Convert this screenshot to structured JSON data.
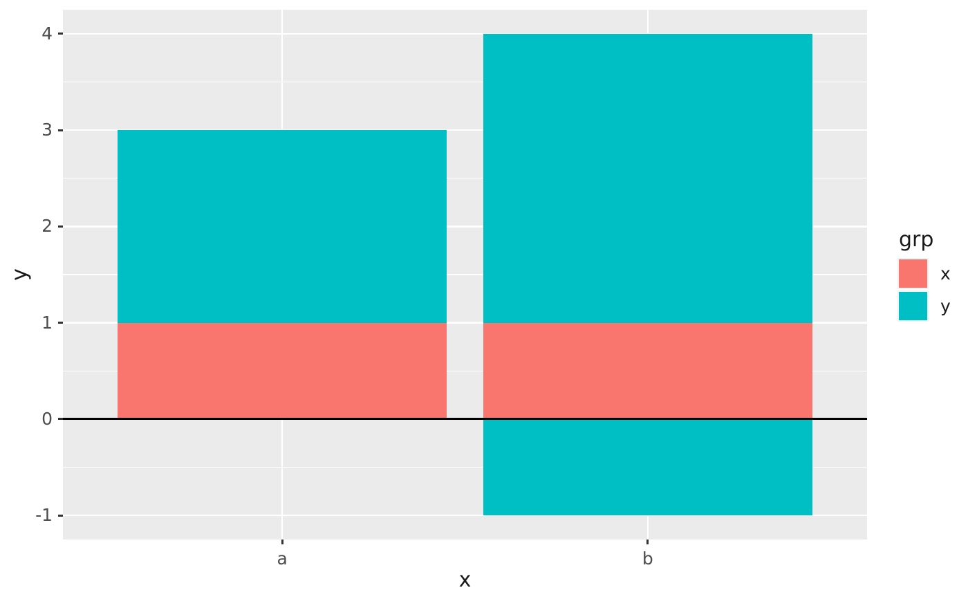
{
  "chart_data": {
    "type": "bar",
    "stacked": true,
    "orientation": "vertical",
    "title": "",
    "xlabel": "x",
    "ylabel": "y",
    "categories": [
      "a",
      "b"
    ],
    "segments": [
      {
        "category": "a",
        "group": "x",
        "from": 0,
        "to": 1
      },
      {
        "category": "a",
        "group": "y",
        "from": 1,
        "to": 3
      },
      {
        "category": "b",
        "group": "x",
        "from": 0,
        "to": 1
      },
      {
        "category": "b",
        "group": "y",
        "from": 1,
        "to": 4
      },
      {
        "category": "b",
        "group": "y",
        "from": -1,
        "to": 0
      }
    ],
    "series": [
      {
        "name": "x",
        "values": [
          1,
          1
        ]
      },
      {
        "name": "y",
        "values": [
          2,
          3
        ]
      },
      {
        "name": "y",
        "values": [
          0,
          -1
        ]
      }
    ],
    "y_breaks": {
      "values": [
        -1,
        0,
        1,
        2,
        3,
        4
      ],
      "labels": [
        "-1",
        "0",
        "1",
        "2",
        "3",
        "4"
      ]
    },
    "y_minor_breaks": [
      -0.5,
      0.5,
      1.5,
      2.5,
      3.5
    ],
    "ylim": [
      -1.25,
      4.25
    ],
    "hline": {
      "y": 0,
      "color": "#000000"
    },
    "grid": "on",
    "legend_position": "right",
    "legend": {
      "title": "grp",
      "entries": [
        {
          "label": "x",
          "color": "#F8766D"
        },
        {
          "label": "y",
          "color": "#00BFC4"
        }
      ]
    },
    "colors": {
      "panel_background": "#EBEBEB",
      "gridline": "#FFFFFF",
      "tick": "#333333",
      "tick_label": "#4D4D4D",
      "axis_title": "#1A1A1A"
    }
  }
}
